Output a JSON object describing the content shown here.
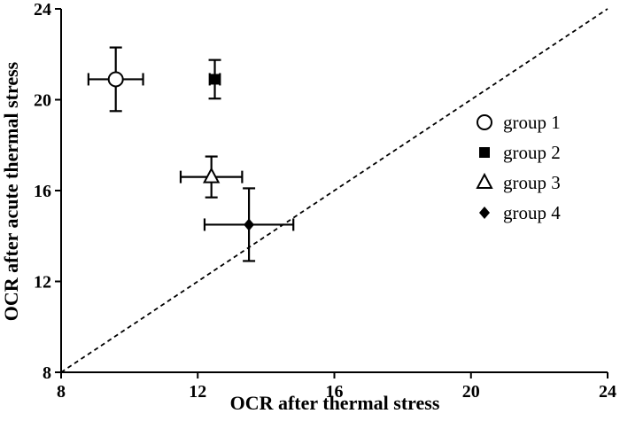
{
  "chart_data": {
    "type": "scatter",
    "title": "",
    "xlabel": "OCR after thermal stress",
    "ylabel": "OCR after acute thermal stress",
    "xlim": [
      8,
      24
    ],
    "ylim": [
      8,
      24
    ],
    "xticks": [
      "8",
      "12",
      "16",
      "20",
      "24"
    ],
    "yticks": [
      "8",
      "12",
      "16",
      "20",
      "24"
    ],
    "grid": false,
    "legend_position": "right",
    "reference_line": {
      "style": "dashed",
      "from": [
        8,
        8
      ],
      "to": [
        24,
        24
      ]
    },
    "series": [
      {
        "name": "group 1",
        "marker": "open-circle",
        "x": 9.6,
        "y": 20.9,
        "x_err": 0.8,
        "y_err": 1.4
      },
      {
        "name": "group 2",
        "marker": "filled-square",
        "x": 12.5,
        "y": 20.9,
        "x_err": 0.15,
        "y_err": 0.85
      },
      {
        "name": "group 3",
        "marker": "open-triangle",
        "x": 12.4,
        "y": 16.6,
        "x_err": 0.9,
        "y_err": 0.9
      },
      {
        "name": "group 4",
        "marker": "filled-diamond",
        "x": 13.5,
        "y": 14.5,
        "x_err": 1.3,
        "y_err": 1.6
      }
    ]
  }
}
